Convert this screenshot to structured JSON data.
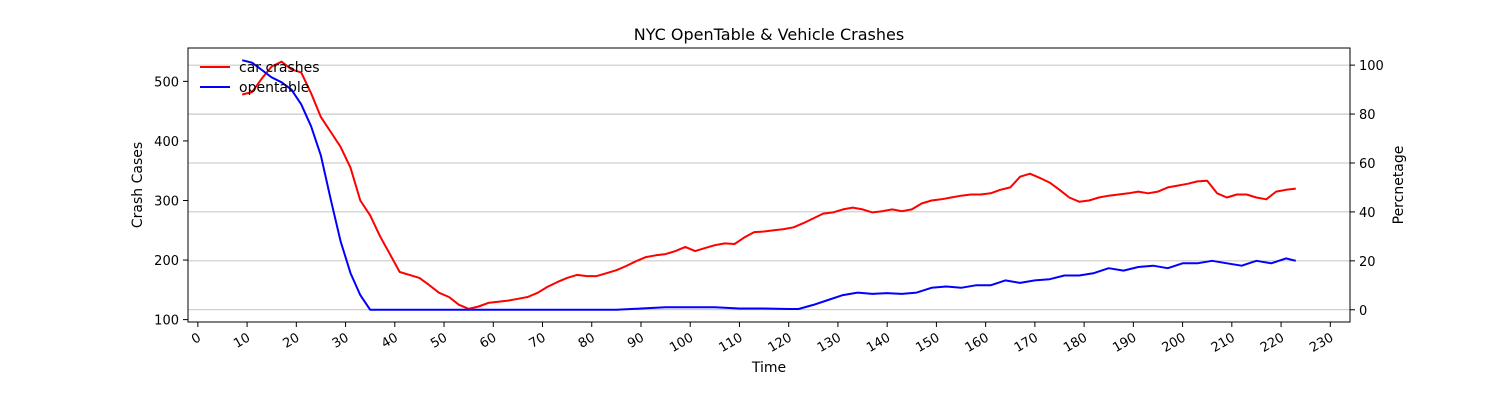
{
  "chart_data": {
    "type": "line",
    "title": "NYC OpenTable & Vehicle Crashes",
    "xlabel": "Time",
    "ylabel_left": "Crash Cases",
    "ylabel_right": "Percnetage",
    "xlim": [
      -2,
      234
    ],
    "ylim_left": [
      96,
      556
    ],
    "ylim_right": [
      -5,
      107
    ],
    "x_ticks": [
      0,
      10,
      20,
      30,
      40,
      50,
      60,
      70,
      80,
      90,
      100,
      110,
      120,
      130,
      140,
      150,
      160,
      170,
      180,
      190,
      200,
      210,
      220,
      230
    ],
    "y_ticks_left": [
      100,
      200,
      300,
      400,
      500
    ],
    "y_ticks_right": [
      0,
      20,
      40,
      60,
      80,
      100
    ],
    "grid": "horizontal",
    "legend_position": "top-left",
    "series": [
      {
        "name": "car crashes",
        "axis": "left",
        "color": "#ff0000",
        "x": [
          9,
          11,
          13,
          15,
          17,
          19,
          21,
          23,
          25,
          27,
          29,
          31,
          33,
          35,
          37,
          39,
          41,
          43,
          45,
          47,
          49,
          51,
          53,
          55,
          57,
          59,
          61,
          63,
          65,
          67,
          69,
          71,
          73,
          75,
          77,
          79,
          81,
          83,
          85,
          87,
          89,
          91,
          93,
          95,
          97,
          99,
          101,
          103,
          105,
          107,
          109,
          111,
          113,
          115,
          117,
          119,
          121,
          123,
          125,
          127,
          129,
          131,
          133,
          135,
          137,
          139,
          141,
          143,
          145,
          147,
          149,
          151,
          153,
          155,
          157,
          159,
          161,
          163,
          165,
          167,
          169,
          171,
          173,
          175,
          177,
          179,
          181,
          183,
          185,
          187,
          189,
          191,
          193,
          195,
          197,
          199,
          201,
          203,
          205,
          207,
          209,
          211,
          213,
          215,
          217,
          219,
          221,
          223
        ],
        "values": [
          478,
          482,
          505,
          525,
          533,
          520,
          515,
          480,
          440,
          415,
          390,
          355,
          300,
          275,
          240,
          210,
          180,
          175,
          170,
          158,
          145,
          138,
          125,
          118,
          122,
          128,
          130,
          132,
          135,
          138,
          145,
          155,
          163,
          170,
          175,
          173,
          173,
          178,
          183,
          190,
          198,
          205,
          208,
          210,
          215,
          222,
          215,
          220,
          225,
          228,
          227,
          238,
          247,
          248,
          250,
          252,
          255,
          262,
          270,
          278,
          280,
          285,
          288,
          285,
          280,
          282,
          285,
          282,
          285,
          295,
          300,
          302,
          305,
          308,
          310,
          310,
          312,
          318,
          322,
          340,
          345,
          338,
          330,
          318,
          305,
          298,
          300,
          305,
          308,
          310,
          312,
          315,
          312,
          315,
          322,
          325,
          328,
          332,
          333,
          312,
          305,
          310,
          310,
          305,
          302,
          315,
          318,
          320
        ]
      },
      {
        "name": "opentable",
        "axis": "right",
        "color": "#0000ff",
        "x": [
          9,
          11,
          13,
          15,
          17,
          19,
          21,
          23,
          25,
          27,
          29,
          31,
          33,
          35,
          37,
          40,
          45,
          50,
          55,
          60,
          65,
          70,
          75,
          80,
          85,
          90,
          95,
          100,
          105,
          110,
          115,
          120,
          122,
          125,
          128,
          131,
          134,
          137,
          140,
          143,
          146,
          149,
          152,
          155,
          158,
          161,
          164,
          167,
          170,
          173,
          176,
          179,
          182,
          185,
          188,
          191,
          194,
          197,
          200,
          203,
          206,
          209,
          212,
          215,
          218,
          221,
          223
        ],
        "values": [
          102,
          101,
          98,
          95,
          93,
          90,
          84,
          75,
          63,
          45,
          28,
          15,
          6,
          0,
          0,
          0,
          0,
          0,
          0,
          0,
          0,
          0,
          0,
          0,
          0,
          0.5,
          1,
          1,
          1,
          0.5,
          0.5,
          0.3,
          0.3,
          2,
          4,
          6,
          7,
          6.5,
          6.8,
          6.5,
          7,
          9,
          9.5,
          9,
          10,
          10,
          12,
          11,
          12,
          12.5,
          14,
          14,
          15,
          17,
          16,
          17.5,
          18,
          17,
          19,
          19,
          20,
          19,
          18,
          20,
          19,
          21,
          20
        ]
      }
    ]
  }
}
